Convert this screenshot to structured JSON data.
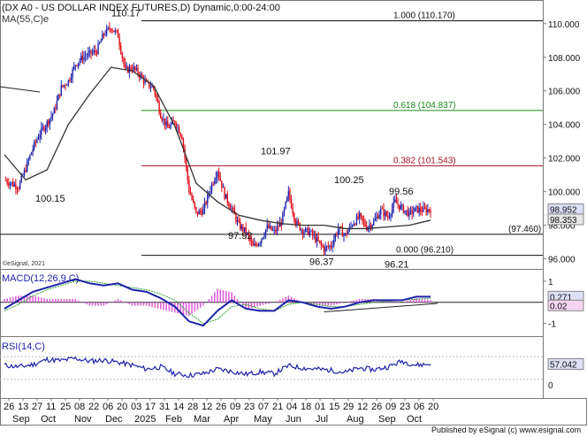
{
  "header": {
    "title": "(DX A0 - US DOLLAR INDEX FUTURES,D) Dynamic,0:00-24:00",
    "ma_label": "MA(55,C)e",
    "copyright": "©eSignal, 2021",
    "footer": "Published by eSignal (c) www.esignal.com"
  },
  "colors": {
    "bull": "#1e22aa",
    "bear": "#e0101a",
    "ma": "#333333",
    "fib_green": "#1a8a1a",
    "fib_red": "#a8101e",
    "macd_hist": "#e060d8",
    "signal": "#2aa02a",
    "rsi": "#1e22aa",
    "panel_label": "#1e22aa",
    "last_box": "#1e22aa"
  },
  "chart_data": [
    {
      "type": "candlestick",
      "title": "(DX A0 - US DOLLAR INDEX FUTURES,D) Dynamic,0:00-24:00",
      "y_axis_ticks": [
        "110.000",
        "108.000",
        "106.000",
        "104.000",
        "102.000",
        "100.000",
        "98.000",
        "96.000"
      ],
      "ylim": [
        95.4,
        111.2
      ],
      "x_tick_labels": [
        "26",
        "13",
        "27",
        "11",
        "25",
        "08",
        "22",
        "06",
        "20",
        "03",
        "17",
        "31",
        "14",
        "28",
        "12",
        "26",
        "09",
        "23",
        "07",
        "21",
        "04",
        "18",
        "01",
        "15",
        "29",
        "12",
        "26",
        "09",
        "23",
        "06",
        "20"
      ],
      "month_labels": [
        "Sep",
        "Oct",
        "Nov",
        "Dec",
        "2025",
        "Feb",
        "Mar",
        "Apr",
        "May",
        "Jun",
        "Jul",
        "Aug",
        "Sep",
        "Oct"
      ],
      "series": [
        {
          "name": "MA(55,C)e",
          "x": [
            0,
            1.5,
            3,
            4.5,
            6,
            7.5,
            9,
            10.5,
            12,
            13.5,
            15,
            16.5,
            18,
            19.5,
            21,
            22.5,
            24,
            25.5,
            27,
            28.5,
            30
          ],
          "values": [
            102.2,
            100.7,
            101.3,
            104.0,
            105.8,
            107.4,
            107.2,
            106.3,
            103.9,
            100.5,
            99.4,
            98.6,
            98.3,
            98.1,
            98.0,
            98.0,
            97.8,
            97.8,
            97.9,
            98.0,
            98.3
          ]
        }
      ],
      "close_path": {
        "x": [
          0,
          0.5,
          1,
          1.5,
          2,
          2.5,
          3,
          3.5,
          4,
          4.5,
          5,
          5.5,
          6,
          6.5,
          7,
          7.5,
          8,
          8.5,
          9,
          9.5,
          10,
          10.5,
          11,
          11.5,
          12,
          12.5,
          13,
          13.5,
          14,
          14.5,
          15,
          15.5,
          16,
          16.5,
          17,
          17.5,
          18,
          18.5,
          19,
          19.5,
          20,
          20.5,
          21,
          21.5,
          22,
          22.5,
          23,
          23.5,
          24,
          24.5,
          25,
          25.5,
          26,
          26.5,
          27,
          27.5,
          28,
          28.5,
          29,
          29.5,
          30
        ],
        "values": [
          100.7,
          100.5,
          100.3,
          101.4,
          102.6,
          103.5,
          104.1,
          104.8,
          106.2,
          106.6,
          107.6,
          108.0,
          108.2,
          108.4,
          109.4,
          109.8,
          109.3,
          107.2,
          107.4,
          107.0,
          106.4,
          106.2,
          104.6,
          103.8,
          104.2,
          103.3,
          100.1,
          98.7,
          98.9,
          100.2,
          101.3,
          99.8,
          99.0,
          98.0,
          97.6,
          96.7,
          97.1,
          97.9,
          97.6,
          98.2,
          99.9,
          98.2,
          97.7,
          97.6,
          97.1,
          96.6,
          96.8,
          97.8,
          97.4,
          98.1,
          98.5,
          97.9,
          98.2,
          98.9,
          98.5,
          99.4,
          99.0,
          98.7,
          98.95,
          98.9,
          98.952
        ]
      },
      "horizontal_levels": [
        {
          "label": "1.000 (110.170)",
          "value": 110.17,
          "color": "#111111"
        },
        {
          "label": "0.618 (104.837)",
          "value": 104.837,
          "color": "#1a8a1a"
        },
        {
          "label": "0.382 (101.543)",
          "value": 101.543,
          "color": "#a8101e"
        },
        {
          "label": "0.000 (96.210)",
          "value": 96.21,
          "color": "#111111"
        },
        {
          "label": "(97.460)",
          "value": 97.46,
          "color": "#111111"
        }
      ],
      "annotations": [
        {
          "text": "110.17",
          "value": 110.17
        },
        {
          "text": "101.97",
          "value": 101.97
        },
        {
          "text": "100.25",
          "value": 100.25
        },
        {
          "text": "99.56",
          "value": 99.56
        },
        {
          "text": "100.15",
          "value": 100.15
        },
        {
          "text": "97.92",
          "value": 97.92
        },
        {
          "text": "96.37",
          "value": 96.37
        },
        {
          "text": "96.21",
          "value": 96.21
        }
      ],
      "last_values": [
        "98.952",
        "98.353"
      ]
    },
    {
      "type": "line",
      "title": "MACD(12,26,9,C)",
      "y_axis_ticks": [
        "1",
        "-1"
      ],
      "ylim": [
        -1.6,
        1.5
      ],
      "macd_x": [
        0,
        1,
        2,
        3,
        4,
        5,
        6,
        7,
        8,
        9,
        10,
        11,
        12,
        13,
        14,
        15,
        16,
        17,
        18,
        19,
        20,
        21,
        22,
        23,
        24,
        25,
        26,
        27,
        28,
        29,
        30
      ],
      "macd": [
        -0.3,
        0.1,
        0.5,
        0.7,
        0.9,
        1.1,
        0.9,
        0.8,
        0.9,
        0.6,
        0.5,
        0.2,
        -0.2,
        -0.9,
        -1.1,
        -0.4,
        0.1,
        -0.3,
        -0.4,
        -0.4,
        0.1,
        0.0,
        -0.2,
        -0.3,
        -0.2,
        0.0,
        0.1,
        0.1,
        0.1,
        0.27,
        0.271
      ],
      "signal": [
        -0.4,
        -0.1,
        0.3,
        0.6,
        0.8,
        1.0,
        1.0,
        0.9,
        0.8,
        0.7,
        0.6,
        0.4,
        0.1,
        -0.5,
        -1.0,
        -0.8,
        -0.2,
        -0.1,
        -0.3,
        -0.4,
        -0.1,
        0.0,
        -0.1,
        -0.2,
        -0.2,
        -0.1,
        0.0,
        0.05,
        0.1,
        0.15,
        0.2
      ],
      "last_values": [
        "0.271",
        "0.02"
      ]
    },
    {
      "type": "line",
      "title": "RSI(14,C)",
      "y_axis_ticks": [
        "0"
      ],
      "ylim": [
        0,
        100
      ],
      "x": [
        0,
        1,
        2,
        3,
        4,
        5,
        6,
        7,
        8,
        9,
        10,
        11,
        12,
        13,
        14,
        15,
        16,
        17,
        18,
        19,
        20,
        21,
        22,
        23,
        24,
        25,
        26,
        27,
        28,
        29,
        30
      ],
      "values": [
        55,
        52,
        56,
        65,
        63,
        67,
        62,
        64,
        60,
        55,
        48,
        52,
        40,
        37,
        40,
        48,
        44,
        39,
        43,
        40,
        54,
        50,
        48,
        46,
        42,
        50,
        47,
        52,
        62,
        55,
        57.042
      ],
      "last_values": [
        "57.042"
      ]
    }
  ]
}
